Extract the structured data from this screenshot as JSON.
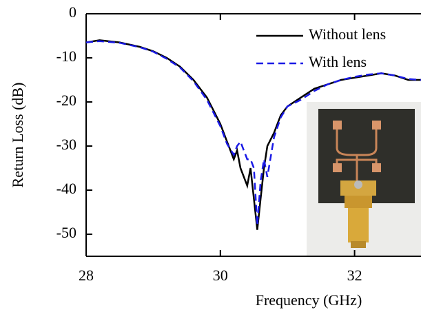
{
  "chart_data": {
    "type": "line",
    "x_label": "Frequency (GHz)",
    "y_label": "Return Loss (dB)",
    "x": [
      28,
      28.2,
      28.5,
      28.8,
      29.0,
      29.2,
      29.4,
      29.6,
      29.8,
      29.9,
      30.0,
      30.1,
      30.2,
      30.25,
      30.3,
      30.35,
      30.4,
      30.45,
      30.5,
      30.55,
      30.6,
      30.65,
      30.7,
      30.8,
      30.9,
      31.0,
      31.2,
      31.4,
      31.6,
      31.8,
      32.0,
      32.2,
      32.4,
      32.6,
      32.8,
      33.0
    ],
    "series": [
      {
        "name": "Without lens",
        "color": "#000000",
        "dash": false,
        "values": [
          -6.5,
          -6,
          -6.5,
          -7.5,
          -8.5,
          -10,
          -12,
          -15,
          -19,
          -22,
          -25,
          -29,
          -33,
          -31,
          -35,
          -37,
          -39,
          -35,
          -42,
          -49,
          -42,
          -35,
          -30,
          -27,
          -23,
          -21,
          -19,
          -17,
          -16,
          -15,
          -14.5,
          -14,
          -13.5,
          -14,
          -15,
          -15
        ]
      },
      {
        "name": "With lens",
        "color": "#1a1ae6",
        "dash": true,
        "values": [
          -6.5,
          -6.2,
          -6.6,
          -7.6,
          -8.6,
          -10.2,
          -12.2,
          -15.3,
          -19.5,
          -22.5,
          -25.5,
          -29.5,
          -32,
          -30,
          -29,
          -31,
          -33,
          -33,
          -35,
          -48,
          -38,
          -33,
          -37,
          -28,
          -23.5,
          -21,
          -19.5,
          -17.5,
          -16,
          -15,
          -14.3,
          -13.8,
          -13.5,
          -14,
          -14.8,
          -15
        ]
      }
    ],
    "xlim": [
      28,
      33
    ],
    "ylim": [
      -55,
      0
    ],
    "xticks": [
      28,
      30,
      32
    ],
    "yticks": [
      0,
      -10,
      -20,
      -30,
      -40,
      -50
    ],
    "legend": "upper right"
  }
}
